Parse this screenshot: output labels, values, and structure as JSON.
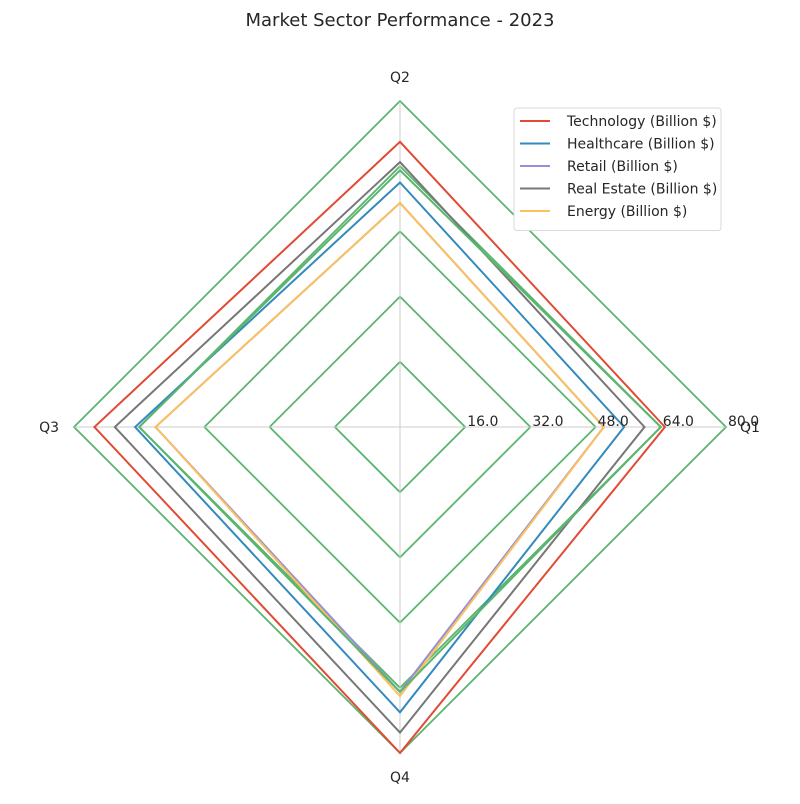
{
  "chart_data": {
    "type": "radar",
    "title": "Market Sector Performance - 2023",
    "axes": [
      "Q1",
      "Q2",
      "Q3",
      "Q4"
    ],
    "radial_ticks": [
      "16.0",
      "32.0",
      "48.0",
      "64.0",
      "80.0"
    ],
    "radial_tick_values": [
      16,
      32,
      48,
      64,
      80
    ],
    "rmax": 80,
    "grid_color": "#5ab56e",
    "spoke_color": "#cccccc",
    "legend_position": "top-right",
    "series": [
      {
        "name": "Technology (Billion $)",
        "color": "#e24a33",
        "values": [
          65,
          70,
          75,
          80
        ]
      },
      {
        "name": "Healthcare (Billion $)",
        "color": "#348abd",
        "values": [
          55,
          60,
          65,
          70
        ]
      },
      {
        "name": "Retail (Billion $)",
        "color": "#988ed5",
        "values": [
          50,
          55,
          60,
          65
        ]
      },
      {
        "name": "Real Estate (Billion $)",
        "color": "#777777",
        "values": [
          60,
          65,
          70,
          75
        ]
      },
      {
        "name": "Energy (Billion $)",
        "color": "#fbc15e",
        "values": [
          50,
          55,
          60,
          66
        ]
      },
      {
        "name": "",
        "color": "#5ab56e",
        "values": [
          64,
          63,
          64,
          65
        ]
      }
    ]
  }
}
